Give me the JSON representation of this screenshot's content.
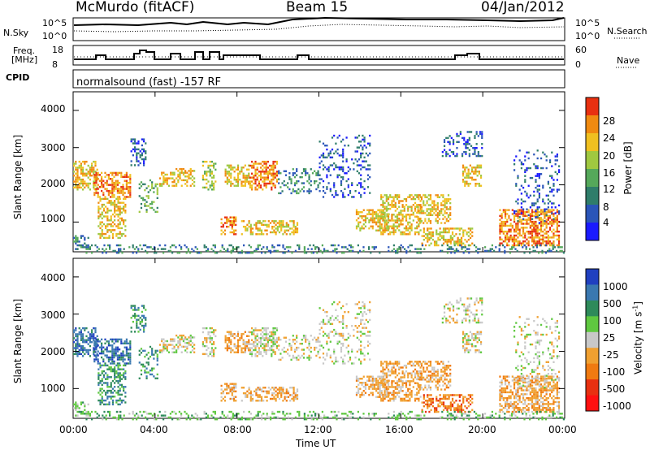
{
  "header": {
    "station": "McMurdo (fitACF)",
    "beam": "Beam 15",
    "date": "04/Jan/2012"
  },
  "top_panels": {
    "nsky_label": "N.Sky",
    "nsky_ticks": [
      "10^5",
      "10^0"
    ],
    "nsearch_label": "N.Search",
    "nsearch_ticks": [
      "10^5",
      "10^0"
    ],
    "freq_label_1": "Freq.",
    "freq_label_2": "[MHz]",
    "freq_ticks": [
      "18",
      "8"
    ],
    "nave_label": "Nave",
    "nave_ticks": [
      "60",
      "0"
    ],
    "cpid_label": "CPID",
    "cpid_value": "normalsound (fast) -157 RF"
  },
  "chart_data": [
    {
      "type": "heatmap",
      "name": "power",
      "ylabel": "Slant Range [km]",
      "y_ticks": [
        1000,
        2000,
        3000,
        4000
      ],
      "ylim": [
        200,
        4500
      ],
      "x_ticks": [
        "00:00",
        "04:00",
        "08:00",
        "12:00",
        "16:00",
        "20:00",
        "00:00"
      ],
      "xlim_hours": [
        0,
        24
      ],
      "colorbar": {
        "label": "Power [dB]",
        "ticks": [
          "4",
          "8",
          "12",
          "16",
          "20",
          "24",
          "28"
        ],
        "colors": [
          "#1a1aff",
          "#2a55b8",
          "#2f7d6a",
          "#55a85a",
          "#a0c840",
          "#f0c020",
          "#f08a10",
          "#e83010"
        ]
      }
    },
    {
      "type": "heatmap",
      "name": "velocity",
      "ylabel": "Slant Range [km]",
      "y_ticks": [
        1000,
        2000,
        3000,
        4000
      ],
      "ylim": [
        200,
        4500
      ],
      "x_ticks": [
        "00:00",
        "04:00",
        "08:00",
        "12:00",
        "16:00",
        "20:00",
        "00:00"
      ],
      "xlim_hours": [
        0,
        24
      ],
      "xlabel": "Time UT",
      "colorbar": {
        "label": "Velocity [m s",
        "label_sup": "-1",
        "label_end": "]",
        "ticks": [
          "1000",
          "500",
          "100",
          "25",
          "-25",
          "-100",
          "-500",
          "-1000"
        ],
        "colors": [
          "#2040c0",
          "#3a78b0",
          "#2e8a5a",
          "#5fc840",
          "#c8c8c8",
          "#f0a030",
          "#f07a10",
          "#e83010",
          "#ff1010"
        ]
      }
    }
  ]
}
